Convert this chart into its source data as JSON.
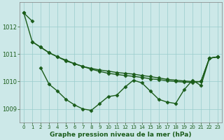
{
  "lines": [
    {
      "x": [
        0,
        1
      ],
      "y": [
        1012.5,
        1012.2
      ],
      "color": "#1a5c1a",
      "linewidth": 1.0,
      "marker": "D",
      "markersize": 2.5
    },
    {
      "x": [
        2,
        3,
        4,
        5,
        6,
        7,
        8,
        9,
        10,
        11,
        12,
        13,
        14,
        15,
        16,
        17,
        18,
        19,
        20,
        21,
        22,
        23
      ],
      "y": [
        1010.5,
        1009.9,
        1009.65,
        1009.35,
        1009.15,
        1009.0,
        1008.95,
        1009.2,
        1009.45,
        1009.5,
        1009.8,
        1010.05,
        1009.95,
        1009.65,
        1009.35,
        1009.25,
        1009.2,
        1009.7,
        1010.05,
        1009.85,
        1010.85,
        1010.9
      ],
      "color": "#1a5c1a",
      "linewidth": 1.0,
      "marker": "D",
      "markersize": 2.5
    },
    {
      "x": [
        1,
        2,
        3,
        4,
        5,
        6,
        7,
        8,
        9,
        10,
        11,
        12,
        13,
        14,
        15,
        16,
        17,
        18,
        19,
        20,
        21,
        22,
        23
      ],
      "y": [
        1011.45,
        1011.25,
        1011.05,
        1010.9,
        1010.75,
        1010.65,
        1010.55,
        1010.48,
        1010.42,
        1010.38,
        1010.33,
        1010.3,
        1010.27,
        1010.22,
        1010.18,
        1010.13,
        1010.08,
        1010.05,
        1010.02,
        1010.0,
        1010.0,
        1010.85,
        1010.9
      ],
      "color": "#1a5c1a",
      "linewidth": 1.0,
      "marker": "D",
      "markersize": 2.5
    },
    {
      "x": [
        0,
        1,
        2,
        3,
        4,
        5,
        6,
        7,
        8,
        9,
        10,
        11,
        12,
        13,
        14,
        15,
        16,
        17,
        18,
        19,
        20,
        21,
        22,
        23
      ],
      "y": [
        1012.5,
        1011.45,
        1011.25,
        1011.05,
        1010.9,
        1010.78,
        1010.65,
        1010.55,
        1010.45,
        1010.37,
        1010.3,
        1010.26,
        1010.22,
        1010.19,
        1010.15,
        1010.1,
        1010.07,
        1010.03,
        1010.0,
        1009.98,
        1009.97,
        1010.0,
        1010.85,
        1010.9
      ],
      "color": "#1a5c1a",
      "linewidth": 1.0,
      "marker": "D",
      "markersize": 2.5
    }
  ],
  "bg_color": "#cce8e8",
  "grid_color": "#99cccc",
  "axis_color": "#808080",
  "text_color": "#1a5c1a",
  "xlabel": "Graphe pression niveau de la mer (hPa)",
  "yticks": [
    1009,
    1010,
    1011,
    1012
  ],
  "xticks": [
    0,
    1,
    2,
    3,
    4,
    5,
    6,
    7,
    8,
    9,
    10,
    11,
    12,
    13,
    14,
    15,
    16,
    17,
    18,
    19,
    20,
    21,
    22,
    23
  ],
  "xlim": [
    -0.5,
    23.5
  ],
  "ylim": [
    1008.5,
    1012.9
  ]
}
